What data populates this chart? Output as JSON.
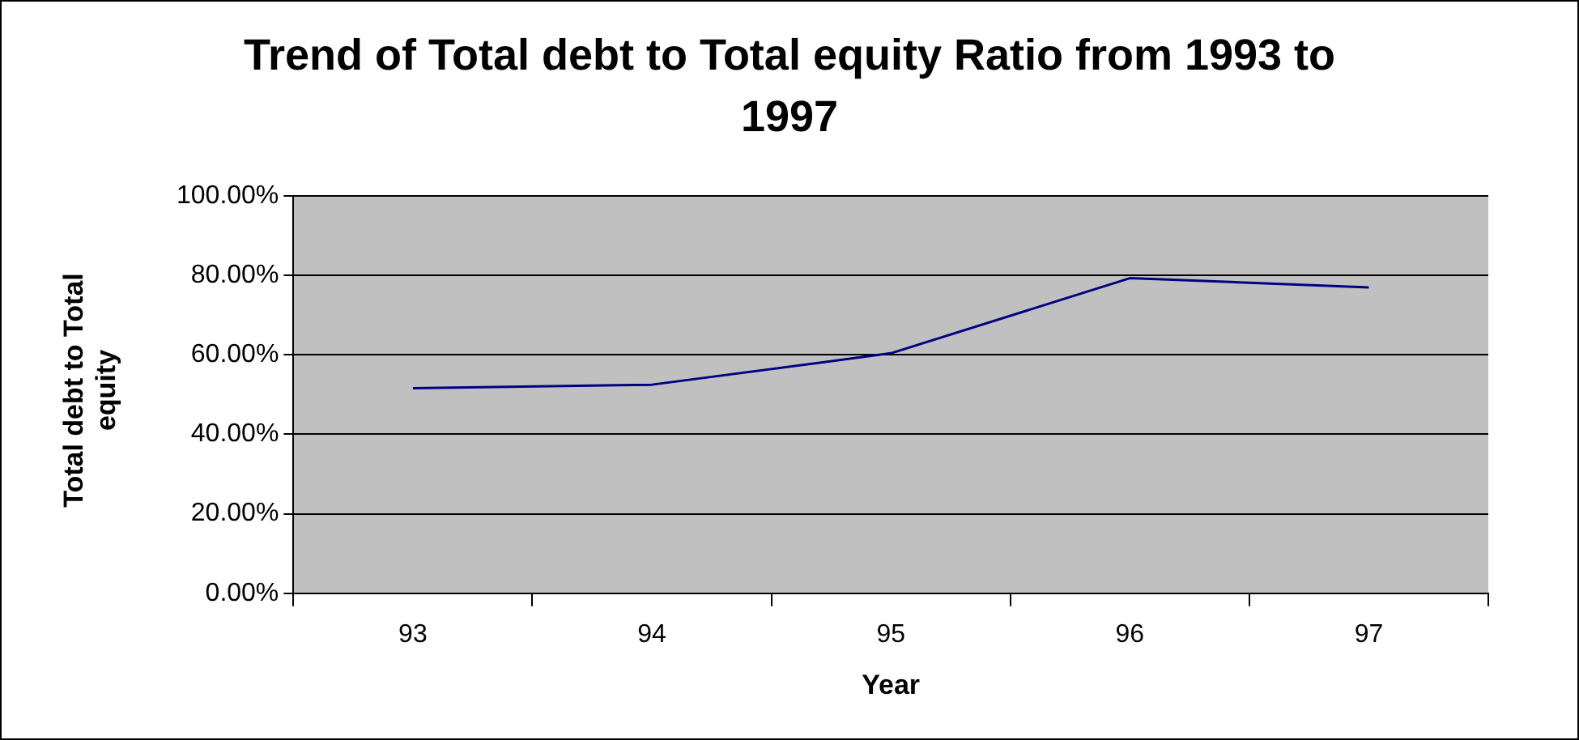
{
  "chart_data": {
    "type": "line",
    "title": "Trend of Total debt to Total equity Ratio from 1993 to 1997",
    "xlabel": "Year",
    "ylabel": "Total debt to Total equity",
    "categories": [
      "93",
      "94",
      "95",
      "96",
      "97"
    ],
    "series": [
      {
        "color": "#000080",
        "values": [
          51.6,
          52.5,
          60.4,
          79.3,
          77.0
        ]
      }
    ],
    "ylim": [
      0,
      100
    ],
    "yticks": [
      {
        "value": 0,
        "label": "0.00%"
      },
      {
        "value": 20,
        "label": "20.00%"
      },
      {
        "value": 40,
        "label": "40.00%"
      },
      {
        "value": 60,
        "label": "60.00%"
      },
      {
        "value": 80,
        "label": "80.00%"
      },
      {
        "value": 100,
        "label": "100.00%"
      }
    ],
    "grid": "y",
    "legend": false,
    "marker": "none",
    "line_style": "solid"
  }
}
